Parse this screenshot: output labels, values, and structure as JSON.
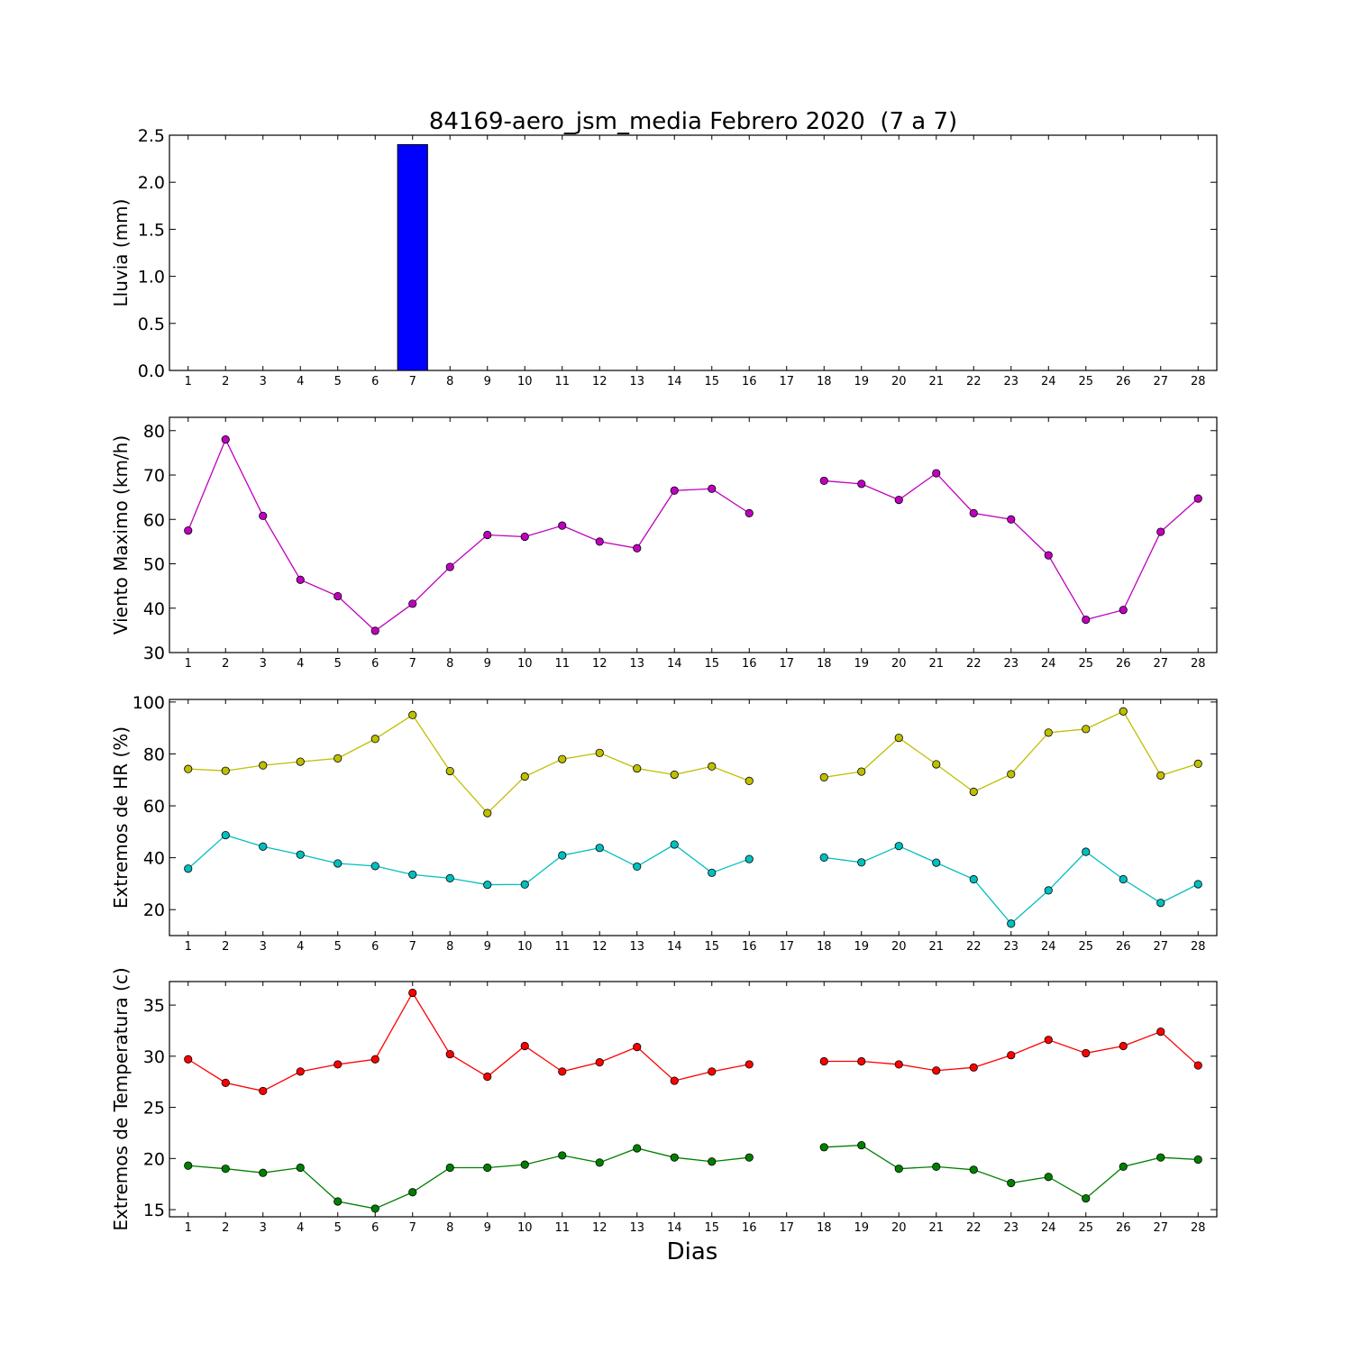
{
  "chart_data": {
    "title": "84169-aero_jsm_media Febrero 2020  (7 a 7)",
    "xlabel": "Dias",
    "days": [
      1,
      2,
      3,
      4,
      5,
      6,
      7,
      8,
      9,
      10,
      11,
      12,
      13,
      14,
      15,
      16,
      17,
      18,
      19,
      20,
      21,
      22,
      23,
      24,
      25,
      26,
      27,
      28
    ],
    "panels": [
      {
        "id": "lluvia",
        "type": "bar",
        "ylabel": "Lluvia (mm)",
        "ylim": [
          0,
          2.5
        ],
        "yticks": [
          "0.0",
          "0.5",
          "1.0",
          "1.5",
          "2.0",
          "2.5"
        ],
        "series": [
          {
            "color": "#0000ff",
            "values": [
              0,
              0,
              0,
              0,
              0,
              0,
              2.4,
              0,
              0,
              0,
              0,
              0,
              0,
              0,
              0,
              0,
              0,
              0,
              0,
              0,
              0,
              0,
              0,
              0,
              0,
              0,
              0,
              0
            ]
          }
        ]
      },
      {
        "id": "viento",
        "type": "line",
        "ylabel": "Viento Maximo (km/h)",
        "ylim": [
          30,
          83
        ],
        "yticks": [
          "30",
          "40",
          "50",
          "60",
          "70",
          "80"
        ],
        "series": [
          {
            "color": "#bf00bf",
            "values": [
              57.5,
              78,
              60.8,
              46.4,
              42.7,
              34.9,
              41,
              49.3,
              56.5,
              56.1,
              58.6,
              55,
              53.5,
              66.5,
              66.9,
              61.4,
              null,
              68.7,
              68,
              64.4,
              70.4,
              61.4,
              60,
              51.9,
              37.4,
              39.6,
              57.2,
              64.7
            ]
          }
        ]
      },
      {
        "id": "hr",
        "type": "line",
        "ylabel": "Extremos de HR (%)",
        "ylim": [
          10,
          101
        ],
        "yticks": [
          "20",
          "40",
          "60",
          "80",
          "100"
        ],
        "series": [
          {
            "color": "#bfbf00",
            "values": [
              74.2,
              73.5,
              75.6,
              77,
              78.3,
              85.8,
              95,
              73.4,
              57.2,
              71.3,
              78,
              80.4,
              74.4,
              72,
              75.2,
              69.6,
              null,
              71,
              73.2,
              86.2,
              76,
              65.4,
              72.2,
              88.2,
              89.6,
              96.4,
              71.7,
              76.2
            ]
          },
          {
            "color": "#00bfbf",
            "values": [
              35.8,
              48.7,
              44.3,
              41.2,
              37.8,
              36.8,
              33.5,
              32.1,
              29.6,
              29.7,
              40.9,
              43.8,
              36.6,
              45.1,
              34.2,
              39.5,
              null,
              40.1,
              38.2,
              44.5,
              38.1,
              31.7,
              14.6,
              27.4,
              42.3,
              31.7,
              22.6,
              29.8
            ]
          }
        ]
      },
      {
        "id": "temp",
        "type": "line",
        "ylabel": "Extremos de Temperatura (c)",
        "ylim": [
          14.3,
          37.3
        ],
        "yticks": [
          "15",
          "20",
          "25",
          "30",
          "35"
        ],
        "series": [
          {
            "color": "#ff0000",
            "values": [
              29.7,
              27.4,
              26.6,
              28.5,
              29.2,
              29.7,
              36.2,
              30.2,
              28,
              31,
              28.5,
              29.4,
              30.9,
              27.6,
              28.5,
              29.2,
              null,
              29.5,
              29.5,
              29.2,
              28.6,
              28.9,
              30.1,
              31.6,
              30.3,
              31,
              32.4,
              29.1
            ]
          },
          {
            "color": "#008000",
            "values": [
              19.3,
              19,
              18.6,
              19.1,
              15.8,
              15.1,
              16.7,
              19.1,
              19.1,
              19.4,
              20.3,
              19.6,
              21,
              20.1,
              19.7,
              20.1,
              null,
              21.1,
              21.3,
              19,
              19.2,
              18.9,
              17.6,
              18.2,
              16.1,
              19.2,
              20.1,
              19.9
            ]
          }
        ]
      }
    ]
  }
}
